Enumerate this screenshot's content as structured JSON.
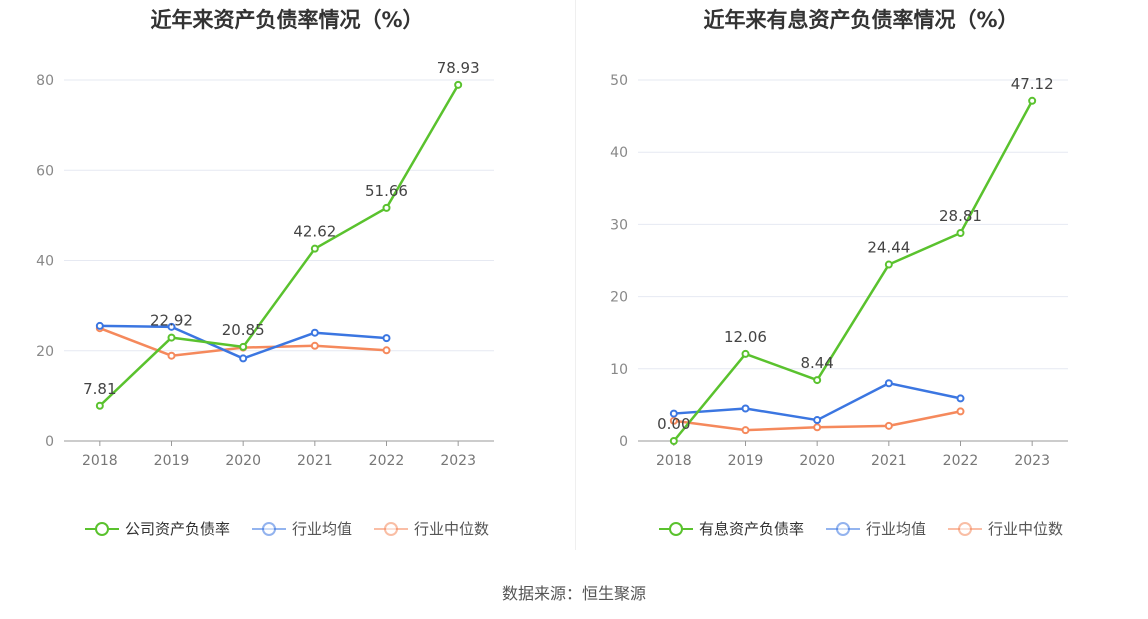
{
  "source_label": "数据来源：恒生聚源",
  "chart_data": [
    {
      "type": "line",
      "title": "近年来资产负债率情况（%）",
      "categories": [
        "2018",
        "2019",
        "2020",
        "2021",
        "2022",
        "2023"
      ],
      "ylim": [
        0,
        80
      ],
      "yticks": [
        0,
        20,
        40,
        60,
        80
      ],
      "grid": true,
      "legend_position": "bottom",
      "series": [
        {
          "name": "公司资产负债率",
          "color": "#5ac22e",
          "labeled": true,
          "values": [
            7.81,
            22.92,
            20.85,
            42.62,
            51.66,
            78.93
          ],
          "labels": [
            "7.81",
            "22.92",
            "20.85",
            "42.62",
            "51.66",
            "78.93"
          ]
        },
        {
          "name": "行业均值",
          "color": "#3b76e1",
          "labeled": false,
          "values": [
            25.5,
            25.3,
            18.3,
            24.0,
            22.8,
            null
          ]
        },
        {
          "name": "行业中位数",
          "color": "#f5895c",
          "labeled": false,
          "values": [
            25.0,
            18.9,
            20.7,
            21.1,
            20.1,
            null
          ]
        }
      ]
    },
    {
      "type": "line",
      "title": "近年来有息资产负债率情况（%）",
      "categories": [
        "2018",
        "2019",
        "2020",
        "2021",
        "2022",
        "2023"
      ],
      "ylim": [
        0,
        50
      ],
      "yticks": [
        0,
        10,
        20,
        30,
        40,
        50
      ],
      "grid": true,
      "legend_position": "bottom",
      "series": [
        {
          "name": "有息资产负债率",
          "color": "#5ac22e",
          "labeled": true,
          "values": [
            0.0,
            12.06,
            8.44,
            24.44,
            28.81,
            47.12
          ],
          "labels": [
            "0.00",
            "12.06",
            "8.44",
            "24.44",
            "28.81",
            "47.12"
          ]
        },
        {
          "name": "行业均值",
          "color": "#3b76e1",
          "labeled": false,
          "values": [
            3.8,
            4.5,
            2.9,
            8.0,
            5.9,
            null
          ]
        },
        {
          "name": "行业中位数",
          "color": "#f5895c",
          "labeled": false,
          "values": [
            2.8,
            1.5,
            1.9,
            2.1,
            4.1,
            null
          ]
        }
      ]
    }
  ]
}
